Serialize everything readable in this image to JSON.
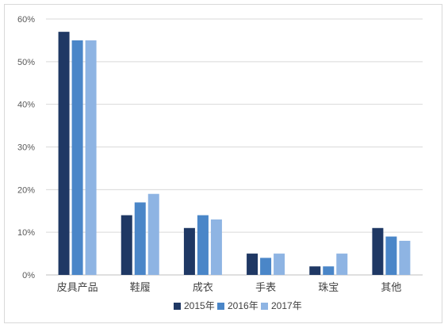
{
  "chart_data": {
    "type": "bar",
    "categories": [
      "皮具产品",
      "鞋履",
      "成衣",
      "手表",
      "珠宝",
      "其他"
    ],
    "series": [
      {
        "name": "2015年",
        "color": "#1f3864",
        "values": [
          57,
          14,
          11,
          5,
          2,
          11
        ]
      },
      {
        "name": "2016年",
        "color": "#4a86c8",
        "values": [
          55,
          17,
          14,
          4,
          2,
          9
        ]
      },
      {
        "name": "2017年",
        "color": "#8eb4e3",
        "values": [
          55,
          19,
          13,
          5,
          5,
          8
        ]
      }
    ],
    "yticks": [
      "0%",
      "10%",
      "20%",
      "30%",
      "40%",
      "50%",
      "60%"
    ],
    "ylim": [
      0,
      60
    ],
    "grid": true,
    "legend_position": "bottom"
  }
}
